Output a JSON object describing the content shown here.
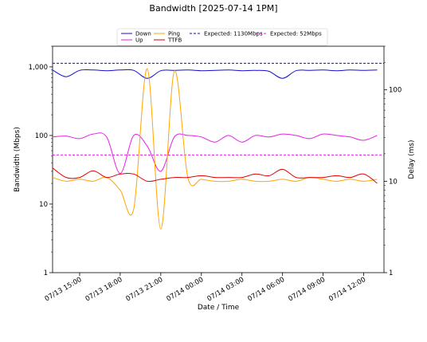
{
  "chart_data": {
    "type": "line",
    "title": "Bandwidth [2025-07-14 1PM]",
    "xlabel": "Date / Time",
    "ylabel_left": "Bandwidth (Mbps)",
    "ylabel_right": "Delay (ms)",
    "left_axis": {
      "scale": "log",
      "ylim": [
        1,
        2000
      ],
      "ticks": [
        "1",
        "10",
        "100",
        "1,000"
      ]
    },
    "right_axis": {
      "scale": "log",
      "ylim": [
        1,
        300
      ],
      "ticks": [
        "1",
        "10",
        "100"
      ]
    },
    "x_axis": {
      "xlim": [
        "2025-07-13 13:00",
        "2025-07-14 13:30"
      ],
      "tick_labels": [
        "07/13 15:00",
        "07/13 18:00",
        "07/13 21:00",
        "07/14 00:00",
        "07/14 03:00",
        "07/14 06:00",
        "07/14 09:00",
        "07/14 12:00"
      ]
    },
    "grid": false,
    "legend_placement": "top-center",
    "legend": [
      "Down",
      "Up",
      "Ping",
      "TTFB",
      "Expected: 1130Mbps",
      "Expected: 52Mbps"
    ],
    "reference_lines": [
      {
        "name": "Expected: 1130Mbps",
        "axis": "left",
        "value": 1130,
        "color": "#1010b0",
        "style": "dashed"
      },
      {
        "name": "Expected: 52Mbps",
        "axis": "left",
        "value": 52,
        "color": "#e81ee8",
        "style": "dashed"
      }
    ],
    "x": [
      "2025-07-13 13:00",
      "2025-07-13 14:00",
      "2025-07-13 15:00",
      "2025-07-13 16:00",
      "2025-07-13 17:00",
      "2025-07-13 18:00",
      "2025-07-13 19:00",
      "2025-07-13 20:00",
      "2025-07-13 21:00",
      "2025-07-13 22:00",
      "2025-07-13 23:00",
      "2025-07-14 00:00",
      "2025-07-14 01:00",
      "2025-07-14 02:00",
      "2025-07-14 03:00",
      "2025-07-14 04:00",
      "2025-07-14 05:00",
      "2025-07-14 06:00",
      "2025-07-14 07:00",
      "2025-07-14 08:00",
      "2025-07-14 09:00",
      "2025-07-14 10:00",
      "2025-07-14 11:00",
      "2025-07-14 12:00",
      "2025-07-14 13:00"
    ],
    "series": [
      {
        "name": "Down",
        "axis": "left",
        "color": "#1010d0",
        "values": [
          900,
          720,
          890,
          900,
          880,
          900,
          890,
          680,
          880,
          890,
          900,
          880,
          890,
          900,
          880,
          890,
          860,
          680,
          880,
          890,
          900,
          880,
          900,
          890,
          900
        ]
      },
      {
        "name": "Up",
        "axis": "left",
        "color": "#e81ee8",
        "values": [
          95,
          98,
          90,
          105,
          95,
          28,
          100,
          70,
          30,
          95,
          100,
          95,
          80,
          100,
          80,
          100,
          95,
          105,
          100,
          90,
          105,
          100,
          95,
          85,
          100
        ]
      },
      {
        "name": "Ping",
        "axis": "right",
        "color": "#ffa500",
        "values": [
          11,
          10,
          10.5,
          10,
          11,
          8,
          5,
          170,
          3,
          160,
          11,
          10.5,
          10,
          10,
          10.5,
          10,
          10,
          10.5,
          10,
          11,
          10.5,
          10,
          10.5,
          10,
          10.5
        ]
      },
      {
        "name": "TTFB",
        "axis": "right",
        "color": "#e00000",
        "values": [
          14,
          11,
          11,
          13,
          11,
          12,
          12,
          10,
          10.5,
          11,
          11,
          11.5,
          11,
          11,
          11,
          12,
          11.5,
          13.5,
          11,
          11,
          11,
          11.5,
          11,
          12,
          9.5
        ]
      }
    ]
  }
}
